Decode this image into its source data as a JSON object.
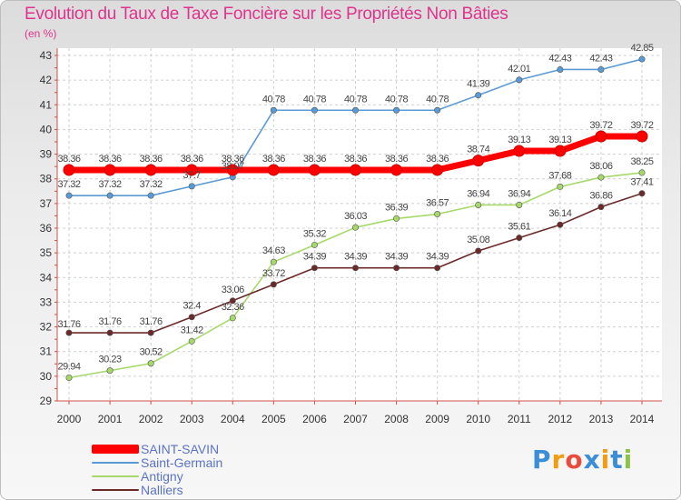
{
  "chart_data": {
    "type": "line",
    "title": "Evolution du Taux de Taxe Foncière sur les Propriétés Non Bâties",
    "subtitle": "(en %)",
    "x": [
      "2000",
      "2001",
      "2002",
      "2003",
      "2004",
      "2005",
      "2006",
      "2007",
      "2008",
      "2009",
      "2010",
      "2011",
      "2012",
      "2013",
      "2014"
    ],
    "ylim": [
      29,
      43
    ],
    "yticks": [
      29,
      30,
      31,
      32,
      33,
      34,
      35,
      36,
      37,
      38,
      39,
      40,
      41,
      42,
      43
    ],
    "grid": true,
    "legend_position": "bottom-left",
    "series": [
      {
        "name": "SAINT-SAVIN",
        "color": "#ff0000",
        "values": [
          38.36,
          38.36,
          38.36,
          38.36,
          38.36,
          38.36,
          38.36,
          38.36,
          38.36,
          38.36,
          38.74,
          39.13,
          39.13,
          39.72,
          39.72
        ],
        "labels": [
          "38.36",
          "38.36",
          "38.36",
          "38.36",
          "38.36",
          "38.36",
          "38.36",
          "38.36",
          "38.36",
          "38.36",
          "38.74",
          "39.13",
          "39.13",
          "39.72",
          "39.72"
        ]
      },
      {
        "name": "Saint-Germain",
        "color": "#5b9bd5",
        "values": [
          37.32,
          37.32,
          37.32,
          37.7,
          38.07,
          40.78,
          40.78,
          40.78,
          40.78,
          40.78,
          41.39,
          42.01,
          42.43,
          42.43,
          42.85
        ],
        "labels": [
          "37.32",
          "37.32",
          "37.32",
          "37.7",
          "38.07",
          "40.78",
          "40.78",
          "40.78",
          "40.78",
          "40.78",
          "41.39",
          "42.01",
          "42.43",
          "42.43",
          "42.85"
        ]
      },
      {
        "name": "Antigny",
        "color": "#a6d96a",
        "values": [
          29.94,
          30.23,
          30.52,
          31.42,
          32.36,
          34.63,
          35.32,
          36.03,
          36.39,
          36.57,
          36.94,
          36.94,
          37.68,
          38.06,
          38.25
        ],
        "labels": [
          "29.94",
          "30.23",
          "30.52",
          "31.42",
          "32.36",
          "34.63",
          "35.32",
          "36.03",
          "36.39",
          "36.57",
          "36.94",
          "36.94",
          "37.68",
          "38.06",
          "38.25"
        ]
      },
      {
        "name": "Nalliers",
        "color": "#6b2a2a",
        "values": [
          31.76,
          31.76,
          31.76,
          32.4,
          33.06,
          33.72,
          34.39,
          34.39,
          34.39,
          34.39,
          35.08,
          35.61,
          36.14,
          36.86,
          37.41
        ],
        "labels": [
          "31.76",
          "31.76",
          "31.76",
          "32.4",
          "33.06",
          "33.72",
          "34.39",
          "34.39",
          "34.39",
          "34.39",
          "35.08",
          "35.61",
          "36.14",
          "36.86",
          "37.41"
        ]
      }
    ]
  },
  "brand": {
    "letters": [
      "P",
      "r",
      "o",
      "x",
      "i",
      "t",
      "i"
    ],
    "colors": [
      "#3c8dd8",
      "#f39c12",
      "#e74c3c",
      "#3c8dd8",
      "#f39c12",
      "#3c8dd8",
      "#8bc34a"
    ]
  }
}
